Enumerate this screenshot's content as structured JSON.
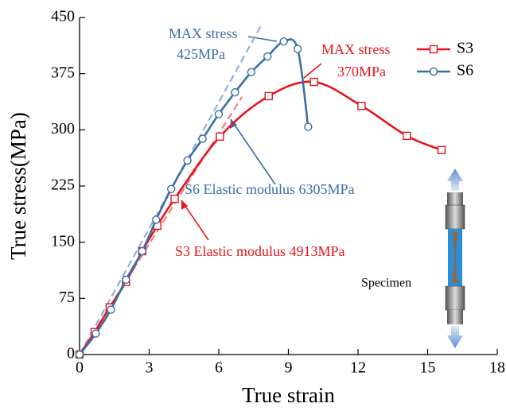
{
  "chart_data": {
    "type": "line",
    "x_label": "True strain",
    "y_label": "True stress(MPa)",
    "xlim": [
      0,
      18
    ],
    "ylim": [
      0,
      450
    ],
    "xticks": [
      0,
      3,
      6,
      9,
      12,
      15,
      18
    ],
    "yticks": [
      0,
      75,
      150,
      225,
      300,
      375,
      450
    ],
    "legend_position": "upper right",
    "series": [
      {
        "name": "S3",
        "color": "#e8141b",
        "marker": "square",
        "x": [
          0,
          0.65,
          1.3,
          2,
          2.7,
          3.35,
          4.1,
          6.05,
          8.15,
          10.1,
          12.15,
          14.1,
          15.6
        ],
        "values": [
          0,
          30,
          63,
          97,
          138,
          172,
          208,
          291,
          345,
          364,
          332,
          292,
          273
        ]
      },
      {
        "name": "S6",
        "color": "#3b6ea5",
        "marker": "circle",
        "x": [
          0,
          0.7,
          1.35,
          2,
          2.7,
          3.3,
          3.95,
          4.65,
          5.3,
          6,
          6.7,
          7.4,
          8.1,
          8.8,
          9.4,
          9.85
        ],
        "values": [
          0,
          28,
          60,
          100,
          138,
          180,
          221,
          259,
          288,
          321,
          350,
          377,
          398,
          418,
          408,
          304
        ]
      }
    ],
    "fit_lines": [
      {
        "color": "#f08080",
        "x": [
          0,
          7
        ],
        "values": [
          0,
          344
        ]
      },
      {
        "color": "#8fb0d8",
        "x": [
          0,
          7.8
        ],
        "values": [
          0,
          438
        ]
      }
    ],
    "annotations": [
      {
        "color": "#3b6ea5",
        "lines": [
          "MAX stress",
          "425MPa"
        ]
      },
      {
        "color": "#e8141b",
        "lines": [
          "MAX stress",
          "370MPa"
        ]
      },
      {
        "color": "#3b6ea5",
        "lines": [
          "S6 Elastic modulus 6305MPa"
        ]
      },
      {
        "color": "#e8141b",
        "lines": [
          "S3 Elastic modulus 4913MPa"
        ]
      },
      {
        "color": "#000000",
        "lines": [
          "Specimen"
        ]
      }
    ]
  }
}
